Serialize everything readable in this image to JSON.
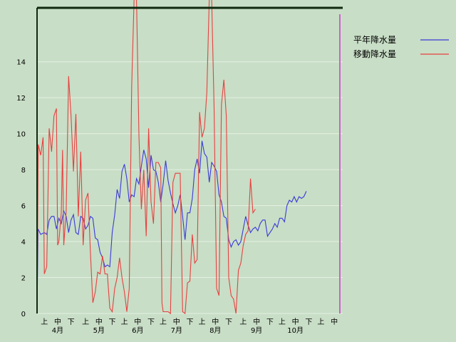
{
  "chart_data": {
    "type": "line",
    "ylim": [
      0,
      17
    ],
    "yticks": [
      0,
      2,
      4,
      6,
      8,
      10,
      12,
      14
    ],
    "xlim": [
      0,
      126
    ],
    "xticks": [
      {
        "x": 3,
        "label": "上"
      },
      {
        "x": 8.5,
        "label": "中"
      },
      {
        "x": 14,
        "label": "下"
      },
      {
        "x": 20,
        "label": "上"
      },
      {
        "x": 25.5,
        "label": "中"
      },
      {
        "x": 31,
        "label": "下"
      },
      {
        "x": 36,
        "label": "上"
      },
      {
        "x": 41.5,
        "label": "中"
      },
      {
        "x": 47,
        "label": "下"
      },
      {
        "x": 52,
        "label": "上"
      },
      {
        "x": 57.5,
        "label": "中"
      },
      {
        "x": 63,
        "label": "下"
      },
      {
        "x": 68,
        "label": "上"
      },
      {
        "x": 73.5,
        "label": "中"
      },
      {
        "x": 79,
        "label": "下"
      },
      {
        "x": 85,
        "label": "上"
      },
      {
        "x": 90.5,
        "label": "中"
      },
      {
        "x": 96,
        "label": "下"
      },
      {
        "x": 101,
        "label": "上"
      },
      {
        "x": 106.5,
        "label": "中"
      },
      {
        "x": 112,
        "label": "下"
      },
      {
        "x": 117,
        "label": "上"
      },
      {
        "x": 122.5,
        "label": "中"
      },
      {
        "x": 128,
        "label": "下"
      }
    ],
    "months": [
      {
        "x": 8.5,
        "label": "4月"
      },
      {
        "x": 25.5,
        "label": "5月"
      },
      {
        "x": 41.5,
        "label": "6月"
      },
      {
        "x": 57.5,
        "label": "7月"
      },
      {
        "x": 73.5,
        "label": "8月"
      },
      {
        "x": 90.5,
        "label": "9月"
      },
      {
        "x": 106.5,
        "label": "10月"
      }
    ],
    "series": [
      {
        "name": "平年降水量",
        "color": "#3a3ad8",
        "points": [
          [
            0,
            0
          ],
          [
            0.4,
            4.7
          ],
          [
            1.5,
            4.4
          ],
          [
            3,
            4.5
          ],
          [
            4,
            4.4
          ],
          [
            5,
            5.2
          ],
          [
            6,
            5.4
          ],
          [
            7,
            5.4
          ],
          [
            8,
            4.7
          ],
          [
            9,
            5.3
          ],
          [
            10,
            5.0
          ],
          [
            11,
            5.7
          ],
          [
            12,
            5.4
          ],
          [
            13,
            4.5
          ],
          [
            14,
            5.2
          ],
          [
            15,
            5.5
          ],
          [
            16,
            4.5
          ],
          [
            17,
            4.4
          ],
          [
            18,
            5.4
          ],
          [
            19,
            5.3
          ],
          [
            20,
            4.7
          ],
          [
            21,
            4.9
          ],
          [
            22,
            5.4
          ],
          [
            23,
            5.3
          ],
          [
            24,
            4.2
          ],
          [
            25,
            4.1
          ],
          [
            26,
            3.4
          ],
          [
            27,
            3.1
          ],
          [
            28,
            2.6
          ],
          [
            29,
            2.7
          ],
          [
            30,
            2.6
          ],
          [
            31,
            4.5
          ],
          [
            32,
            5.5
          ],
          [
            33,
            6.9
          ],
          [
            34,
            6.4
          ],
          [
            35,
            7.9
          ],
          [
            36,
            8.3
          ],
          [
            37,
            7.5
          ],
          [
            38,
            6.2
          ],
          [
            39,
            6.6
          ],
          [
            40,
            6.5
          ],
          [
            41,
            7.5
          ],
          [
            42,
            7.2
          ],
          [
            43,
            8.2
          ],
          [
            44,
            9.1
          ],
          [
            45,
            8.6
          ],
          [
            46,
            7.0
          ],
          [
            47,
            8.8
          ],
          [
            48,
            8.0
          ],
          [
            49,
            7.9
          ],
          [
            50,
            7.3
          ],
          [
            51,
            6.2
          ],
          [
            52,
            7.2
          ],
          [
            53,
            8.5
          ],
          [
            54,
            7.4
          ],
          [
            55,
            6.7
          ],
          [
            56,
            6.1
          ],
          [
            57,
            5.6
          ],
          [
            58,
            6.0
          ],
          [
            59,
            6.6
          ],
          [
            60,
            5.4
          ],
          [
            61,
            4.1
          ],
          [
            62,
            5.6
          ],
          [
            63,
            5.6
          ],
          [
            64,
            6.4
          ],
          [
            65,
            8.0
          ],
          [
            66,
            8.6
          ],
          [
            67,
            7.8
          ],
          [
            68,
            9.6
          ],
          [
            69,
            8.9
          ],
          [
            70,
            8.7
          ],
          [
            71,
            7.3
          ],
          [
            72,
            8.4
          ],
          [
            73,
            8.2
          ],
          [
            74,
            7.9
          ],
          [
            75,
            6.6
          ],
          [
            76,
            6.2
          ],
          [
            77,
            5.4
          ],
          [
            78,
            5.3
          ],
          [
            79,
            4.1
          ],
          [
            80,
            3.7
          ],
          [
            81,
            4.0
          ],
          [
            82,
            4.1
          ],
          [
            83,
            3.8
          ],
          [
            84,
            4.0
          ],
          [
            85,
            4.7
          ],
          [
            86,
            5.4
          ],
          [
            87,
            4.9
          ],
          [
            88,
            4.5
          ],
          [
            89,
            4.7
          ],
          [
            90,
            4.8
          ],
          [
            91,
            4.6
          ],
          [
            92,
            5.0
          ],
          [
            93,
            5.2
          ],
          [
            94,
            5.2
          ],
          [
            95,
            4.3
          ],
          [
            96,
            4.5
          ],
          [
            97,
            4.7
          ],
          [
            98,
            5.0
          ],
          [
            99,
            4.8
          ],
          [
            100,
            5.3
          ],
          [
            101,
            5.3
          ],
          [
            102,
            5.1
          ],
          [
            103,
            6.0
          ],
          [
            104,
            6.3
          ],
          [
            105,
            6.2
          ],
          [
            106,
            6.5
          ],
          [
            107,
            6.2
          ],
          [
            108,
            6.5
          ],
          [
            109,
            6.4
          ],
          [
            110,
            6.5
          ],
          [
            111,
            6.8
          ]
        ]
      },
      {
        "name": "移動降水量",
        "color": "#e84040",
        "points": [
          [
            0,
            0
          ],
          [
            0.5,
            9.4
          ],
          [
            1.5,
            8.8
          ],
          [
            2.5,
            9.8
          ],
          [
            3,
            2.2
          ],
          [
            4,
            2.6
          ],
          [
            5,
            10.3
          ],
          [
            6,
            9.0
          ],
          [
            7,
            11.0
          ],
          [
            8,
            11.4
          ],
          [
            8.5,
            3.8
          ],
          [
            9,
            4.0
          ],
          [
            10,
            5.6
          ],
          [
            10.5,
            9.1
          ],
          [
            11,
            3.8
          ],
          [
            12,
            5.7
          ],
          [
            13,
            13.2
          ],
          [
            14,
            11.0
          ],
          [
            15,
            7.9
          ],
          [
            16,
            11.1
          ],
          [
            17,
            5.4
          ],
          [
            18,
            9.0
          ],
          [
            19,
            3.8
          ],
          [
            20,
            6.3
          ],
          [
            21,
            6.7
          ],
          [
            22,
            3.4
          ],
          [
            23,
            0.6
          ],
          [
            24,
            1.2
          ],
          [
            25,
            2.3
          ],
          [
            26,
            2.2
          ],
          [
            27,
            3.2
          ],
          [
            28,
            2.2
          ],
          [
            29,
            2.2
          ],
          [
            30,
            0.3
          ],
          [
            31,
            0.1
          ],
          [
            32,
            1.4
          ],
          [
            33,
            2.0
          ],
          [
            34,
            3.1
          ],
          [
            35,
            2.0
          ],
          [
            36,
            1.2
          ],
          [
            37,
            0.1
          ],
          [
            38,
            1.4
          ],
          [
            39,
            12.6
          ],
          [
            40,
            17.5
          ],
          [
            41,
            17.5
          ],
          [
            42,
            9.9
          ],
          [
            43,
            5.8
          ],
          [
            44,
            8.0
          ],
          [
            45,
            4.3
          ],
          [
            46,
            10.3
          ],
          [
            47,
            6.2
          ],
          [
            48,
            5.0
          ],
          [
            49,
            8.4
          ],
          [
            50,
            8.4
          ],
          [
            51,
            8.1
          ],
          [
            51.5,
            0.6
          ],
          [
            52,
            0.1
          ],
          [
            54,
            0.1
          ],
          [
            55,
            0.0
          ],
          [
            56,
            7.3
          ],
          [
            57,
            7.8
          ],
          [
            58,
            7.8
          ],
          [
            59,
            7.8
          ],
          [
            60,
            0.1
          ],
          [
            61,
            0.0
          ],
          [
            62,
            1.7
          ],
          [
            63,
            1.8
          ],
          [
            64,
            4.4
          ],
          [
            65,
            2.8
          ],
          [
            66,
            3.0
          ],
          [
            67,
            11.2
          ],
          [
            68,
            9.8
          ],
          [
            69,
            10.3
          ],
          [
            70,
            12.3
          ],
          [
            71,
            17.5
          ],
          [
            72,
            17.5
          ],
          [
            73,
            11.4
          ],
          [
            74,
            1.4
          ],
          [
            75,
            1.0
          ],
          [
            76,
            11.6
          ],
          [
            77,
            13.0
          ],
          [
            78,
            11.0
          ],
          [
            79,
            2.0
          ],
          [
            80,
            1.0
          ],
          [
            81,
            0.8
          ],
          [
            82,
            0.0
          ],
          [
            83,
            2.4
          ],
          [
            84,
            2.8
          ],
          [
            85,
            3.8
          ],
          [
            86,
            4.4
          ],
          [
            87,
            4.6
          ],
          [
            88,
            7.5
          ],
          [
            89,
            5.6
          ],
          [
            90,
            5.8
          ]
        ]
      }
    ],
    "legend": {
      "position": "top-right",
      "entries": [
        "平年降水量",
        "移動降水量"
      ]
    },
    "grid": true,
    "frame_color": "#0f2a0f",
    "marker_color": "#d060d0"
  }
}
